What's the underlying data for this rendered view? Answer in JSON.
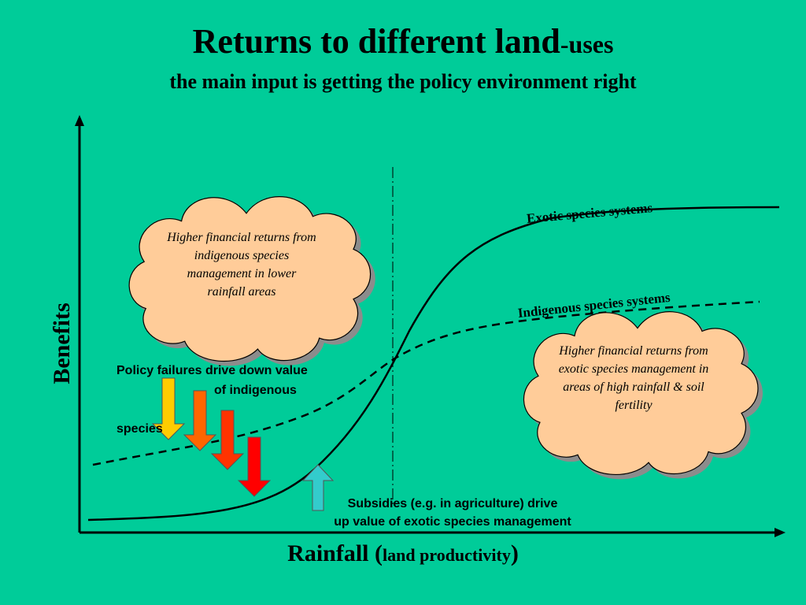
{
  "title": {
    "main": "Returns to different land",
    "suffix": "-uses"
  },
  "subtitle": "the main input is getting the policy environment right",
  "axes": {
    "y_label": "Benefits",
    "x_label_main": "Rainfall (",
    "x_label_small": "land productivity",
    "x_label_close": ")"
  },
  "curves": {
    "exotic": "Exotic species systems",
    "indigenous": "Indigenous species systems"
  },
  "clouds": {
    "left": "Higher financial returns from indigenous species management in lower rainfall areas",
    "right": "Higher financial returns from exotic species management in areas of high rainfall & soil fertility"
  },
  "annotations": {
    "policy_line1": "Policy failures drive down value",
    "policy_line2": "of indigenous",
    "policy_line3": "species",
    "subsidy_line1": "Subsidies (e.g. in agriculture) drive",
    "subsidy_line2": "up value of exotic species management"
  },
  "colors": {
    "background": "#00CC99",
    "cloud_fill": "#FFCC99",
    "cloud_shadow": "#8C8C8C",
    "arrow_yellow": "#FFCC00",
    "arrow_orange": "#FF6600",
    "arrow_red_orange": "#FF3300",
    "arrow_red": "#FF0000",
    "arrow_up": "#33CCCC"
  }
}
